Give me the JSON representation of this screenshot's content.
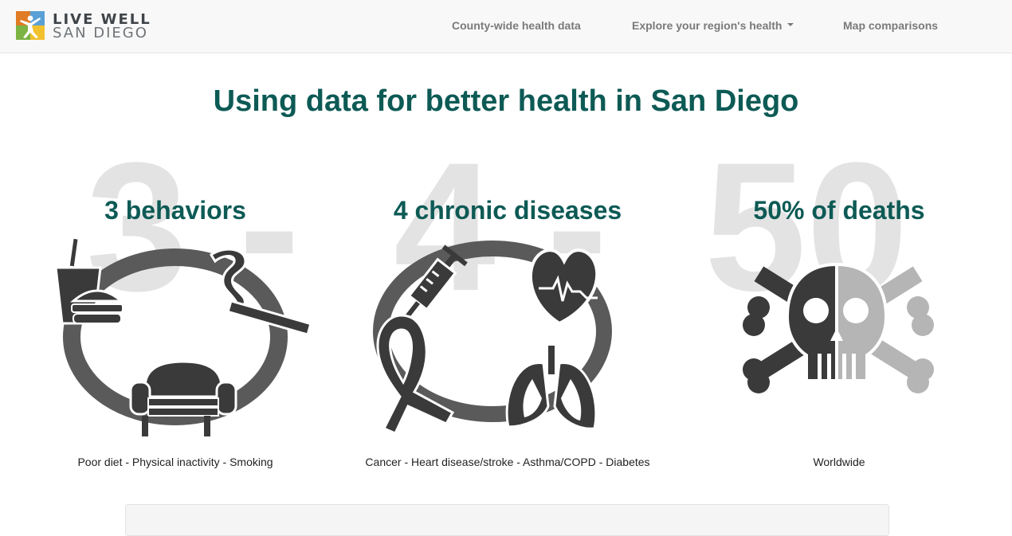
{
  "brand": {
    "line1": "LIVE WELL",
    "line2": "SAN DIEGO",
    "logo_colors": [
      "#e07b26",
      "#5aa0d6",
      "#7cb342",
      "#f2c12e"
    ]
  },
  "nav": {
    "items": [
      {
        "label": "County-wide health data",
        "has_dropdown": false
      },
      {
        "label": "Explore your region's health",
        "has_dropdown": true
      },
      {
        "label": "Map comparisons",
        "has_dropdown": false
      }
    ]
  },
  "hero": {
    "title": "Using data for better health in San Diego"
  },
  "background_numbers": [
    "3 -",
    "4 -",
    "50"
  ],
  "stats": [
    {
      "title": "3 behaviors",
      "caption": "Poor diet - Physical inactivity - Smoking",
      "icons": [
        "fast-food-icon",
        "cigarette-icon",
        "armchair-icon"
      ]
    },
    {
      "title": "4 chronic diseases",
      "caption": "Cancer - Heart disease/stroke - Asthma/COPD - Diabetes",
      "icons": [
        "syringe-icon",
        "heart-icon",
        "ribbon-icon",
        "lungs-icon"
      ]
    },
    {
      "title": "50% of deaths",
      "caption": "Worldwide",
      "icons": [
        "skull-crossbones-icon"
      ]
    }
  ],
  "colors": {
    "accent": "#0d5a55",
    "icon_dark": "#3a3a3a",
    "icon_mid": "#5a5a5a",
    "icon_light": "#b5b5b5",
    "bg_number": "#e3e3e3"
  }
}
